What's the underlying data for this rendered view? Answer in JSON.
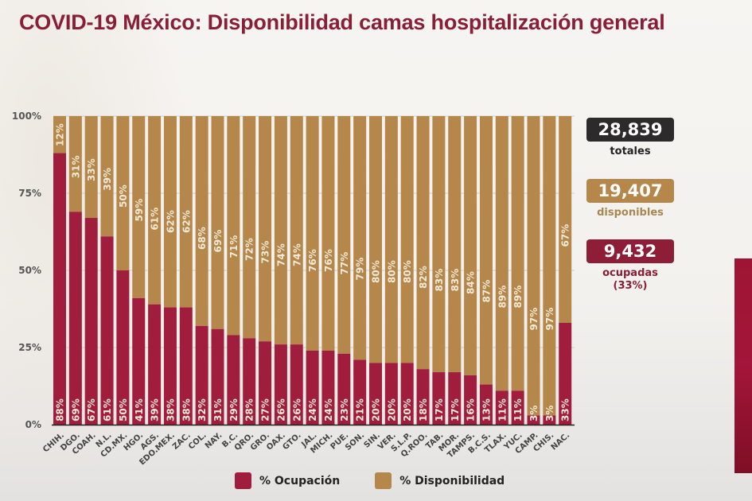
{
  "title": "COVID-19 México: Disponibilidad camas hospitalización general",
  "colors": {
    "ocupacion": "#a11d3d",
    "disponibilidad": "#b5874a",
    "title": "#8a1e36",
    "totales_box": "#2d2a2b",
    "disponibles_text": "#a98750",
    "ocupadas_box": "#8e1d38"
  },
  "summary": {
    "totales_value": "28,839",
    "totales_label": "totales",
    "disponibles_value": "19,407",
    "disponibles_label": "disponibles",
    "ocupadas_value": "9,432",
    "ocupadas_label": "ocupadas",
    "ocupadas_pct": "(33%)"
  },
  "legend": {
    "ocupacion": "% Ocupación",
    "disponibilidad": "% Disponibilidad"
  },
  "chart_data": {
    "type": "bar",
    "stacked": true,
    "percent_stacked": true,
    "title": "COVID-19 México: Disponibilidad camas hospitalización general",
    "xlabel": "",
    "ylabel": "",
    "ylim": [
      0,
      100
    ],
    "yticks": [
      "0%",
      "25%",
      "50%",
      "75%",
      "100%"
    ],
    "grid": true,
    "legend_position": "bottom",
    "categories": [
      "CHIH.",
      "DGO.",
      "COAH.",
      "N.L.",
      "CD.MX.",
      "HGO.",
      "AGS.",
      "EDO.MEX.",
      "ZAC.",
      "COL.",
      "NAY.",
      "B.C.",
      "QRO.",
      "GRO.",
      "OAX.",
      "GTO.",
      "JAL.",
      "MICH.",
      "PUE.",
      "SON.",
      "SIN.",
      "VER.",
      "S.L.P.",
      "Q.ROO.",
      "TAB.",
      "MOR.",
      "TAMPS.",
      "B.C.S.",
      "TLAX.",
      "YUC.",
      "CAMP.",
      "CHIS.",
      "NAC."
    ],
    "series": [
      {
        "name": "% Ocupación",
        "values": [
          88,
          69,
          67,
          61,
          50,
          41,
          39,
          38,
          38,
          32,
          31,
          29,
          28,
          27,
          26,
          26,
          24,
          24,
          23,
          21,
          20,
          20,
          20,
          18,
          17,
          17,
          16,
          13,
          11,
          11,
          3,
          3,
          33
        ]
      },
      {
        "name": "% Disponibilidad",
        "values": [
          12,
          31,
          33,
          39,
          50,
          59,
          61,
          62,
          62,
          68,
          69,
          71,
          72,
          73,
          74,
          74,
          76,
          76,
          77,
          79,
          80,
          80,
          80,
          82,
          83,
          83,
          84,
          87,
          89,
          89,
          97,
          97,
          67
        ]
      }
    ]
  }
}
